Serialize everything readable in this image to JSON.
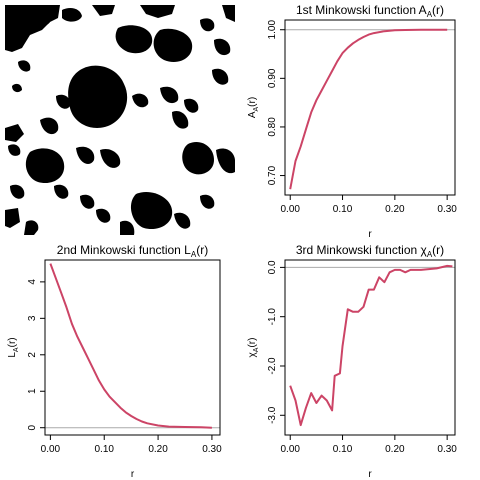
{
  "colors": {
    "curve": "#cc4466",
    "reference": "#aaaaaa",
    "axis": "#000000",
    "image_fg": "#000000",
    "image_bg": "#ffffff"
  },
  "image_panel": {
    "type": "binary-image",
    "description_icon": "black-white-blob-image"
  },
  "chart_data": [
    {
      "type": "line",
      "title": "1st Minkowski function A",
      "title_sub": "A",
      "title_suffix": "(r)",
      "xlabel": "r",
      "ylabel": "A",
      "ylabel_sub": "A",
      "ylabel_suffix": "(r)",
      "xlim": [
        -0.01,
        0.315
      ],
      "ylim": [
        0.66,
        1.02
      ],
      "xticks": [
        0.0,
        0.1,
        0.2,
        0.3
      ],
      "xtick_labels": [
        "0.00",
        "0.10",
        "0.20",
        "0.30"
      ],
      "yticks": [
        0.7,
        0.8,
        0.9,
        1.0
      ],
      "ytick_labels": [
        "0.70",
        "0.80",
        "0.90",
        "1.00"
      ],
      "reference_y": 1.0,
      "x": [
        0.0,
        0.01,
        0.02,
        0.03,
        0.04,
        0.05,
        0.06,
        0.07,
        0.08,
        0.09,
        0.1,
        0.11,
        0.12,
        0.13,
        0.14,
        0.15,
        0.16,
        0.18,
        0.2,
        0.22,
        0.25,
        0.28,
        0.3
      ],
      "y": [
        0.672,
        0.73,
        0.76,
        0.795,
        0.83,
        0.855,
        0.875,
        0.895,
        0.915,
        0.935,
        0.952,
        0.963,
        0.972,
        0.979,
        0.985,
        0.99,
        0.993,
        0.997,
        0.999,
        0.9995,
        1.0,
        1.0,
        1.0
      ]
    },
    {
      "type": "line",
      "title": "2nd Minkowski function L",
      "title_sub": "A",
      "title_suffix": "(r)",
      "xlabel": "r",
      "ylabel": "L",
      "ylabel_sub": "A",
      "ylabel_suffix": "(r)",
      "xlim": [
        -0.01,
        0.315
      ],
      "ylim": [
        -0.2,
        4.6
      ],
      "xticks": [
        0.0,
        0.1,
        0.2,
        0.3
      ],
      "xtick_labels": [
        "0.00",
        "0.10",
        "0.20",
        "0.30"
      ],
      "yticks": [
        0,
        1,
        2,
        3,
        4
      ],
      "ytick_labels": [
        "0",
        "1",
        "2",
        "3",
        "4"
      ],
      "reference_y": 0,
      "x": [
        0.0,
        0.01,
        0.02,
        0.03,
        0.04,
        0.05,
        0.06,
        0.07,
        0.08,
        0.09,
        0.1,
        0.11,
        0.12,
        0.13,
        0.14,
        0.15,
        0.16,
        0.17,
        0.18,
        0.2,
        0.22,
        0.25,
        0.28,
        0.3
      ],
      "y": [
        4.5,
        4.1,
        3.7,
        3.3,
        2.85,
        2.5,
        2.2,
        1.9,
        1.6,
        1.3,
        1.05,
        0.85,
        0.7,
        0.55,
        0.42,
        0.32,
        0.24,
        0.17,
        0.12,
        0.06,
        0.03,
        0.02,
        0.01,
        0.0
      ]
    },
    {
      "type": "line",
      "title": "3rd Minkowski function χ",
      "title_sub": "A",
      "title_suffix": "(r)",
      "xlabel": "r",
      "ylabel": "χ",
      "ylabel_sub": "A",
      "ylabel_suffix": "(r)",
      "xlim": [
        -0.01,
        0.315
      ],
      "ylim": [
        -3.4,
        0.15
      ],
      "xticks": [
        0.0,
        0.1,
        0.2,
        0.3
      ],
      "xtick_labels": [
        "0.00",
        "0.10",
        "0.20",
        "0.30"
      ],
      "yticks": [
        0.0,
        -1.0,
        -2.0,
        -3.0
      ],
      "ytick_labels": [
        "0.0",
        "-1.0",
        "-2.0",
        "-3.0"
      ],
      "reference_y": 0,
      "x": [
        0.0,
        0.01,
        0.02,
        0.03,
        0.04,
        0.05,
        0.06,
        0.07,
        0.08,
        0.085,
        0.095,
        0.1,
        0.11,
        0.12,
        0.13,
        0.14,
        0.15,
        0.16,
        0.17,
        0.18,
        0.19,
        0.2,
        0.21,
        0.22,
        0.23,
        0.25,
        0.28,
        0.3,
        0.31
      ],
      "y": [
        -2.4,
        -2.7,
        -3.2,
        -2.85,
        -2.55,
        -2.75,
        -2.6,
        -2.7,
        -2.9,
        -2.2,
        -2.15,
        -1.6,
        -0.85,
        -0.9,
        -0.9,
        -0.8,
        -0.45,
        -0.45,
        -0.2,
        -0.3,
        -0.1,
        -0.05,
        -0.05,
        -0.1,
        -0.05,
        -0.05,
        -0.02,
        0.03,
        0.02
      ]
    }
  ]
}
